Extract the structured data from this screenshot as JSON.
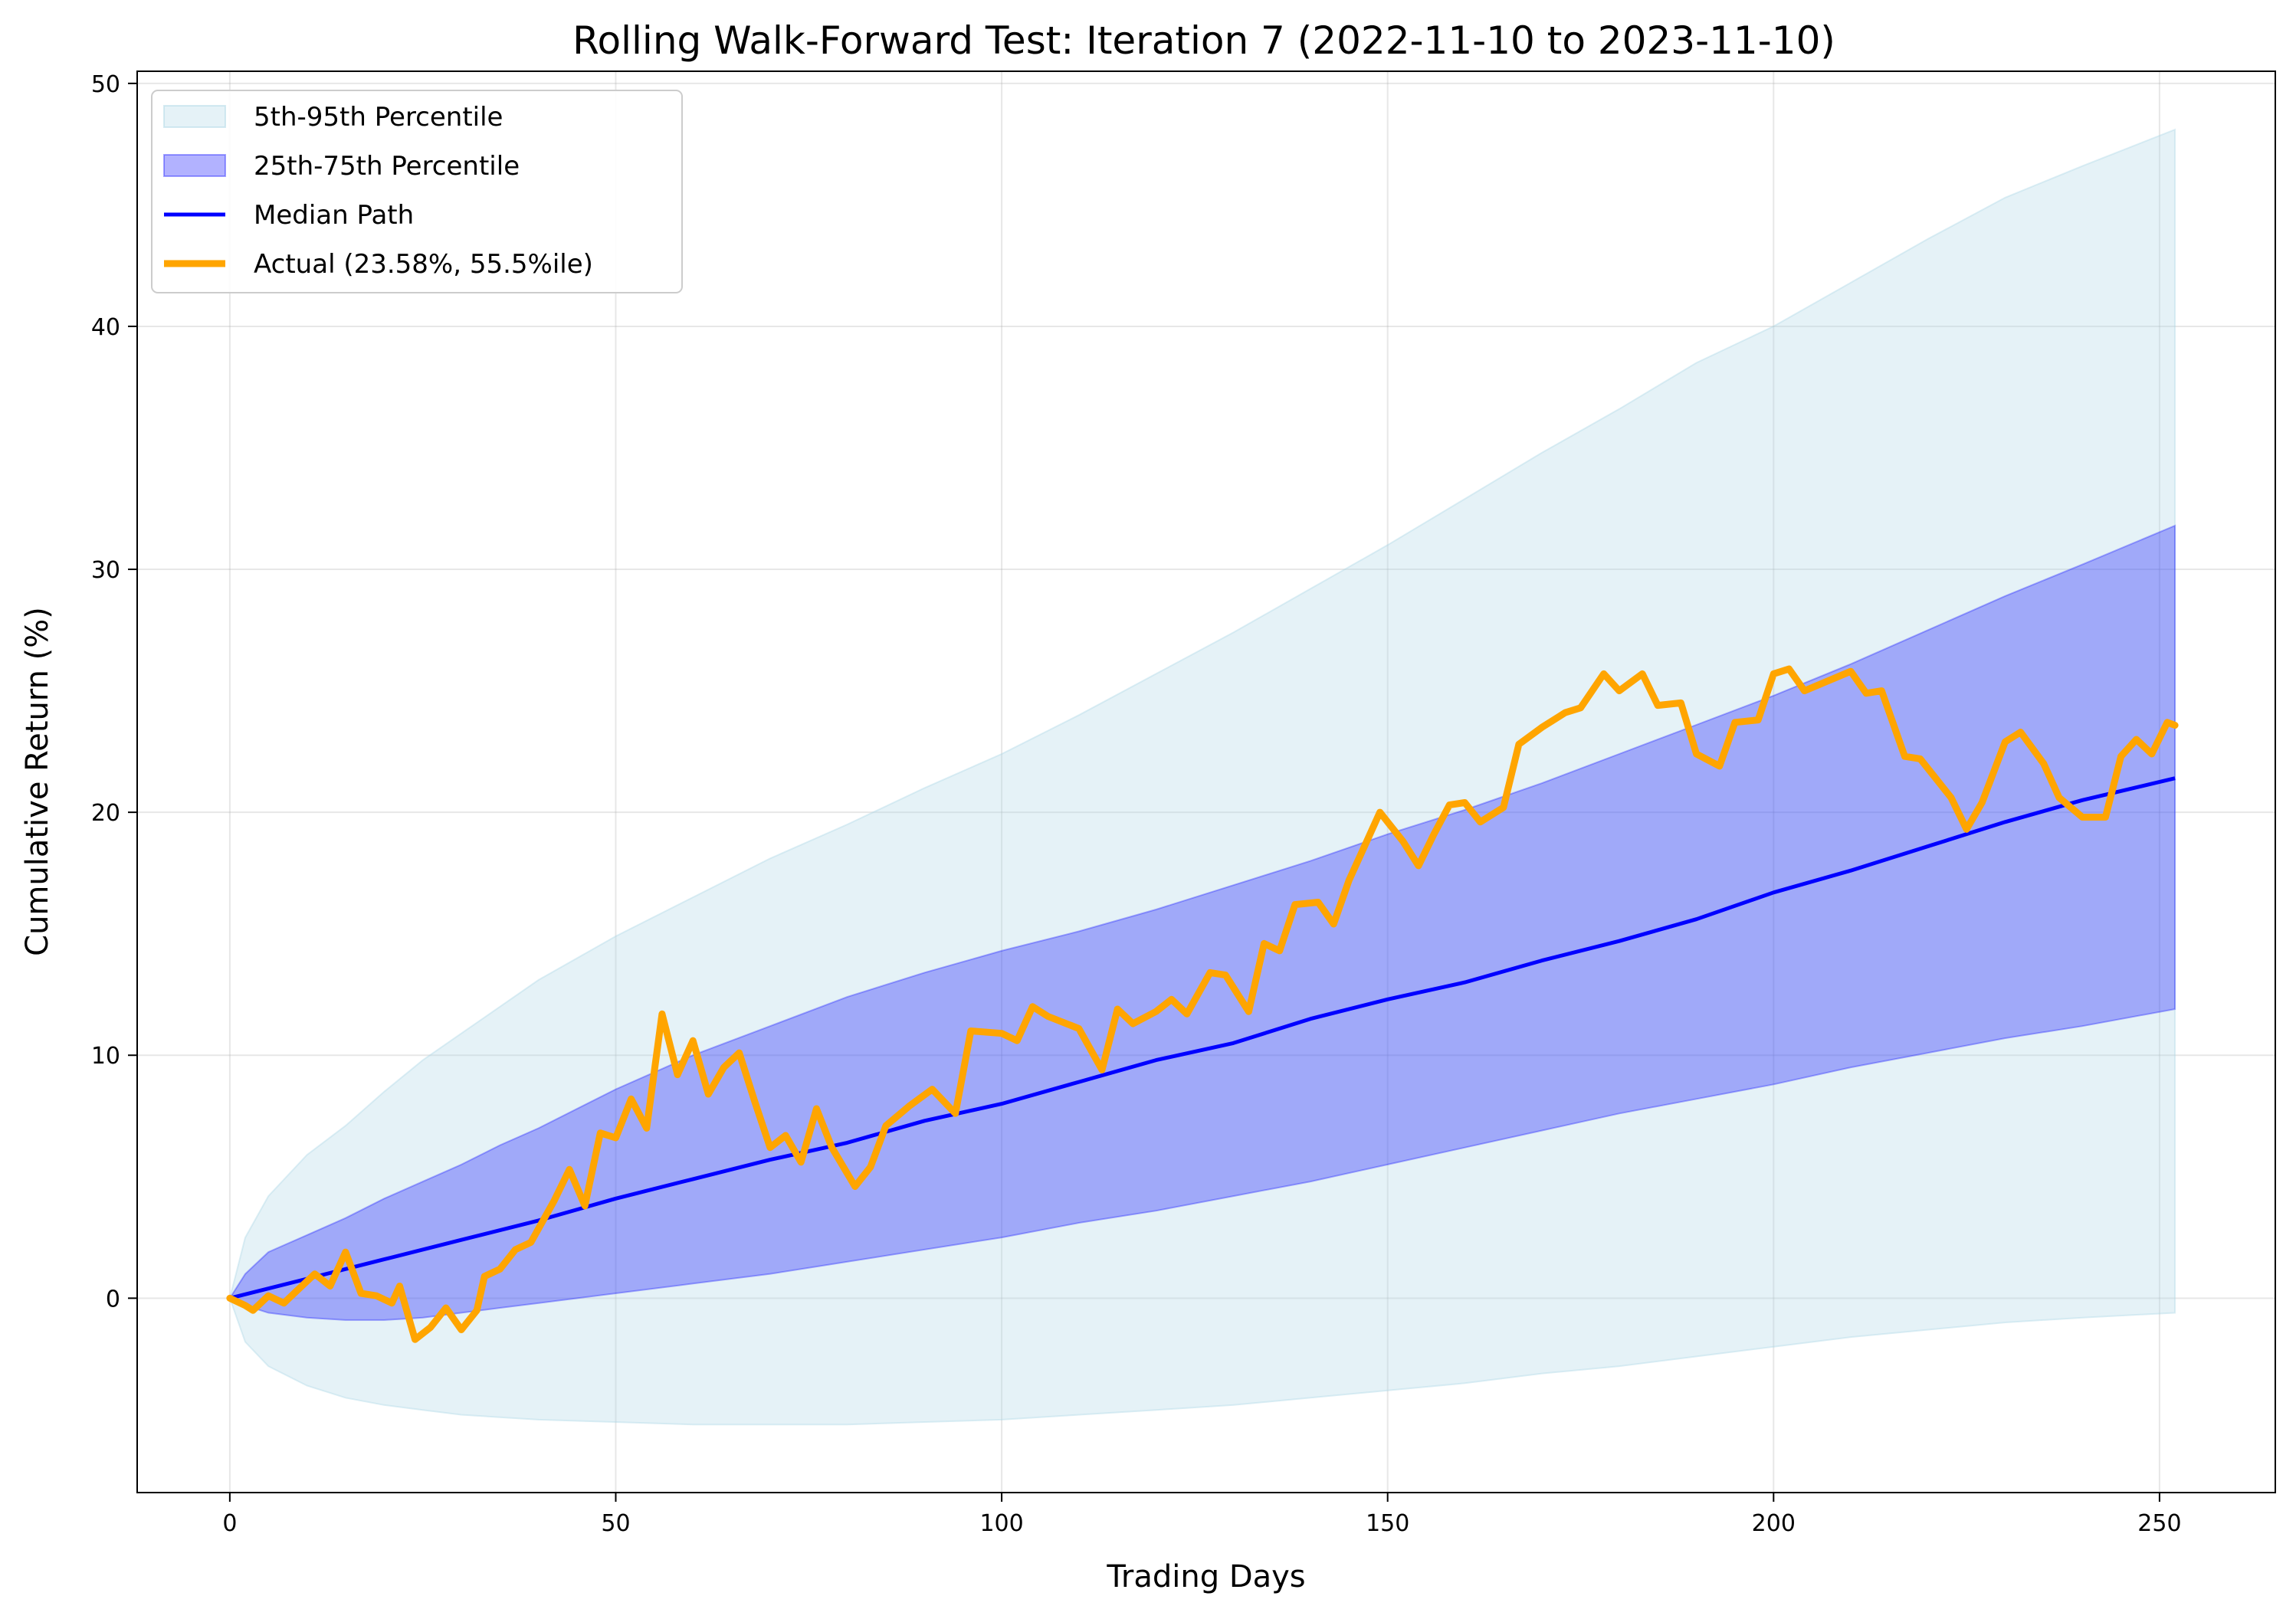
{
  "chart_data": {
    "type": "area",
    "title": "Rolling Walk-Forward Test: Iteration 7 (2022-11-10 to 2023-11-10)",
    "xlabel": "Trading Days",
    "ylabel": "Cumulative Return (%)",
    "xlim": [
      -12,
      265
    ],
    "ylim": [
      -8,
      50.5
    ],
    "xticks": [
      0,
      50,
      100,
      150,
      200,
      250
    ],
    "yticks": [
      0,
      10,
      20,
      30,
      40,
      50
    ],
    "grid": true,
    "legend_position": "upper-left",
    "colors": {
      "band_90": "#add8e6",
      "band_50": "#0000ff",
      "median": "#0000ff",
      "actual": "#ffa500"
    },
    "legend": [
      {
        "key": "band_90",
        "label": "5th-95th Percentile"
      },
      {
        "key": "band_50",
        "label": "25th-75th Percentile"
      },
      {
        "key": "median",
        "label": "Median Path"
      },
      {
        "key": "actual",
        "label": "Actual (23.58%, 55.5%ile)"
      }
    ],
    "bands": {
      "x": [
        0,
        2,
        5,
        10,
        15,
        20,
        25,
        30,
        35,
        40,
        50,
        60,
        70,
        80,
        90,
        100,
        110,
        120,
        130,
        140,
        150,
        160,
        170,
        180,
        190,
        200,
        210,
        220,
        230,
        240,
        252
      ],
      "p5": [
        0,
        -1.8,
        -2.8,
        -3.6,
        -4.1,
        -4.4,
        -4.6,
        -4.8,
        -4.9,
        -5.0,
        -5.1,
        -5.2,
        -5.2,
        -5.2,
        -5.1,
        -5.0,
        -4.8,
        -4.6,
        -4.4,
        -4.1,
        -3.8,
        -3.5,
        -3.1,
        -2.8,
        -2.4,
        -2.0,
        -1.6,
        -1.3,
        -1.0,
        -0.8,
        -0.6
      ],
      "p25": [
        0,
        -0.3,
        -0.6,
        -0.8,
        -0.9,
        -0.9,
        -0.8,
        -0.6,
        -0.4,
        -0.2,
        0.2,
        0.6,
        1.0,
        1.5,
        2.0,
        2.5,
        3.1,
        3.6,
        4.2,
        4.8,
        5.5,
        6.2,
        6.9,
        7.6,
        8.2,
        8.8,
        9.5,
        10.1,
        10.7,
        11.2,
        11.9
      ],
      "p75": [
        0,
        1.0,
        1.9,
        2.6,
        3.3,
        4.1,
        4.8,
        5.5,
        6.3,
        7.0,
        8.6,
        10.0,
        11.2,
        12.4,
        13.4,
        14.3,
        15.1,
        16.0,
        17.0,
        18.0,
        19.1,
        20.1,
        21.2,
        22.4,
        23.6,
        24.8,
        26.1,
        27.5,
        28.9,
        30.2,
        31.8
      ],
      "p95": [
        0,
        2.5,
        4.2,
        5.9,
        7.1,
        8.5,
        9.8,
        10.9,
        12.0,
        13.1,
        14.9,
        16.5,
        18.1,
        19.5,
        21.0,
        22.4,
        24.0,
        25.7,
        27.4,
        29.2,
        31.0,
        32.9,
        34.8,
        36.6,
        38.5,
        40.0,
        41.8,
        43.6,
        45.3,
        46.6,
        48.1
      ]
    },
    "median": {
      "x": [
        0,
        10,
        20,
        30,
        40,
        50,
        60,
        70,
        80,
        90,
        100,
        110,
        120,
        130,
        140,
        150,
        160,
        170,
        180,
        190,
        200,
        210,
        220,
        230,
        240,
        252
      ],
      "y": [
        0,
        0.8,
        1.6,
        2.4,
        3.2,
        4.1,
        4.9,
        5.7,
        6.4,
        7.3,
        8.0,
        8.9,
        9.8,
        10.5,
        11.5,
        12.3,
        13.0,
        13.9,
        14.7,
        15.6,
        16.7,
        17.6,
        18.6,
        19.6,
        20.5,
        21.4
      ]
    },
    "actual": {
      "x": [
        0,
        2,
        3,
        5,
        7,
        9,
        11,
        13,
        15,
        17,
        19,
        21,
        22,
        24,
        26,
        28,
        30,
        32,
        33,
        35,
        37,
        39,
        42,
        44,
        46,
        48,
        50,
        52,
        54,
        56,
        58,
        60,
        62,
        64,
        66,
        68,
        70,
        72,
        74,
        76,
        78,
        81,
        83,
        85,
        88,
        91,
        94,
        96,
        100,
        102,
        104,
        106,
        110,
        113,
        115,
        117,
        120,
        122,
        124,
        127,
        129,
        132,
        134,
        136,
        138,
        141,
        143,
        145,
        147,
        149,
        152,
        154,
        156,
        158,
        160,
        162,
        165,
        167,
        170,
        173,
        175,
        178,
        180,
        183,
        185,
        188,
        190,
        193,
        195,
        198,
        200,
        202,
        204,
        207,
        210,
        212,
        214,
        217,
        219,
        223,
        225,
        227,
        230,
        232,
        235,
        237,
        240,
        243,
        245,
        247,
        249,
        251,
        252
      ],
      "y": [
        0,
        -0.3,
        -0.5,
        0.1,
        -0.2,
        0.4,
        1.0,
        0.5,
        1.9,
        0.2,
        0.1,
        -0.2,
        0.5,
        -1.7,
        -1.2,
        -0.4,
        -1.3,
        -0.5,
        0.9,
        1.2,
        2.0,
        2.3,
        4.0,
        5.3,
        3.8,
        6.8,
        6.6,
        8.2,
        7.0,
        11.7,
        9.2,
        10.6,
        8.4,
        9.5,
        10.1,
        8.1,
        6.2,
        6.7,
        5.6,
        7.8,
        6.2,
        4.6,
        5.4,
        7.1,
        7.9,
        8.6,
        7.6,
        11.0,
        10.9,
        10.6,
        12.0,
        11.6,
        11.1,
        9.4,
        11.9,
        11.3,
        11.8,
        12.3,
        11.7,
        13.4,
        13.3,
        11.8,
        14.6,
        14.3,
        16.2,
        16.3,
        15.4,
        17.2,
        18.6,
        20.0,
        18.8,
        17.8,
        19.1,
        20.3,
        20.4,
        19.6,
        20.2,
        22.8,
        23.5,
        24.1,
        24.3,
        25.7,
        25.0,
        25.7,
        24.4,
        24.5,
        22.4,
        21.9,
        23.7,
        23.8,
        25.7,
        25.9,
        25.0,
        25.4,
        25.8,
        24.9,
        25.0,
        22.3,
        22.2,
        20.6,
        19.3,
        20.4,
        22.9,
        23.3,
        22.0,
        20.6,
        19.8,
        19.8,
        22.3,
        23.0,
        22.4,
        23.7,
        23.58
      ]
    }
  }
}
